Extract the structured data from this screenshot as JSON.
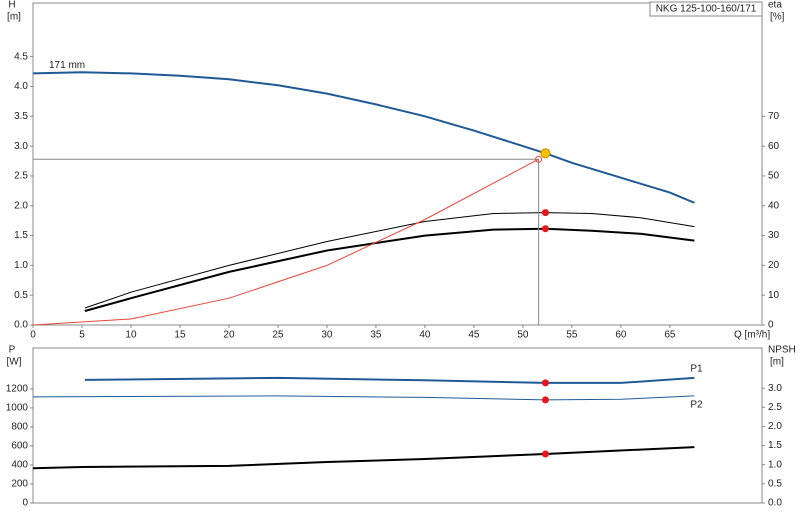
{
  "chart_data": [
    {
      "type": "line",
      "title": "NKG 125-100-160/171",
      "ylabel": "H",
      "yunit": "[m]",
      "y2label": "eta",
      "y2unit": "[%]",
      "xlabel": "Q [m³/h]",
      "xlim": [
        0,
        74.4
      ],
      "xticks": [
        0,
        5,
        10,
        15,
        20,
        25,
        30,
        35,
        40,
        45,
        50,
        55,
        60,
        65
      ],
      "ylim": [
        0,
        5.4
      ],
      "yticks": [
        {
          "value": 0,
          "label": "0.0"
        },
        0.5,
        {
          "value": 1,
          "label": "1.0"
        },
        1.5,
        {
          "value": 2,
          "label": "2.0"
        },
        2.5,
        {
          "value": 3,
          "label": "3.0"
        },
        3.5,
        {
          "value": 4,
          "label": "4.0"
        },
        4.5
      ],
      "y2lim": [
        0,
        108
      ],
      "y2ticks": [
        0,
        10,
        20,
        30,
        40,
        50,
        60,
        70
      ],
      "series": [
        {
          "name": "171 mm",
          "color": "#1f5a96",
          "x": [
            0,
            5,
            10,
            15,
            20,
            25,
            30,
            35,
            40,
            45,
            50,
            52.3,
            55,
            60,
            65,
            67.5
          ],
          "values": [
            4.22,
            4.24,
            4.22,
            4.18,
            4.12,
            4.02,
            3.88,
            3.7,
            3.5,
            3.26,
            3.0,
            2.88,
            2.72,
            2.47,
            2.22,
            2.05
          ]
        },
        {
          "color": "#000000",
          "axis": "y2",
          "x": [
            5.3,
            10,
            20,
            30,
            40,
            47,
            52.3,
            57,
            62,
            67.5
          ],
          "values": [
            5.7,
            11,
            20,
            28,
            34.7,
            37.4,
            37.7,
            37.4,
            36,
            33
          ]
        },
        {
          "color": "#000000",
          "axis": "y2",
          "x": [
            5.3,
            10,
            20,
            30,
            40,
            47,
            52.3,
            57,
            62,
            67.5
          ],
          "values": [
            4.7,
            9,
            17.8,
            25,
            30,
            32,
            32.3,
            31.6,
            30.6,
            28.3
          ]
        },
        {
          "color": "#e8463c",
          "x": [
            0,
            10,
            20,
            30,
            40,
            51.6
          ],
          "values": [
            0,
            0.1,
            0.45,
            1.0,
            1.77,
            2.78
          ]
        },
        {
          "color": "#f5c400",
          "marker": "dot",
          "x": [
            52.3
          ],
          "values": [
            2.88
          ]
        },
        {
          "color": "#e8141c",
          "marker": "dot",
          "axis": "y2",
          "x": [
            52.3,
            52.3
          ],
          "values": [
            37.7,
            32.3
          ]
        }
      ]
    },
    {
      "type": "line",
      "ylabel": "P",
      "yunit": "[W]",
      "y2label": "NPSH",
      "y2unit": "[m]",
      "xlim": [
        0,
        74.4
      ],
      "ylim": [
        0,
        1630
      ],
      "yticks": [
        0,
        200,
        400,
        600,
        800,
        1000,
        1200
      ],
      "y2lim": [
        0,
        4.05
      ],
      "y2ticks": [
        {
          "value": 0,
          "label": "0.0"
        },
        0.5,
        {
          "value": 1,
          "label": "1.0"
        },
        1.5,
        {
          "value": 2,
          "label": "2.0"
        },
        2.5,
        {
          "value": 3,
          "label": "3.0"
        }
      ],
      "series": [
        {
          "name": "P1",
          "color": "#1f5a96",
          "x": [
            5.3,
            25,
            40,
            52.3,
            60,
            67.5
          ],
          "values": [
            1295,
            1316,
            1290,
            1263,
            1263,
            1316
          ]
        },
        {
          "name": "P2",
          "color": "#1f5a96",
          "x": [
            0,
            25,
            40,
            52.3,
            60,
            67.5
          ],
          "values": [
            1116,
            1126,
            1110,
            1084,
            1090,
            1126
          ]
        },
        {
          "color": "#000000",
          "axis": "y2",
          "x": [
            0,
            5,
            20,
            30,
            40,
            52.3,
            67.5
          ],
          "values": [
            0.91,
            0.94,
            0.97,
            1.07,
            1.15,
            1.28,
            1.46
          ]
        },
        {
          "color": "#e8141c",
          "marker": "dot",
          "x": [
            52.3,
            52.3
          ],
          "values": [
            1263,
            1084
          ]
        },
        {
          "color": "#e8141c",
          "marker": "dot",
          "axis": "y2",
          "x": [
            52.3
          ],
          "values": [
            1.28
          ]
        }
      ]
    }
  ]
}
